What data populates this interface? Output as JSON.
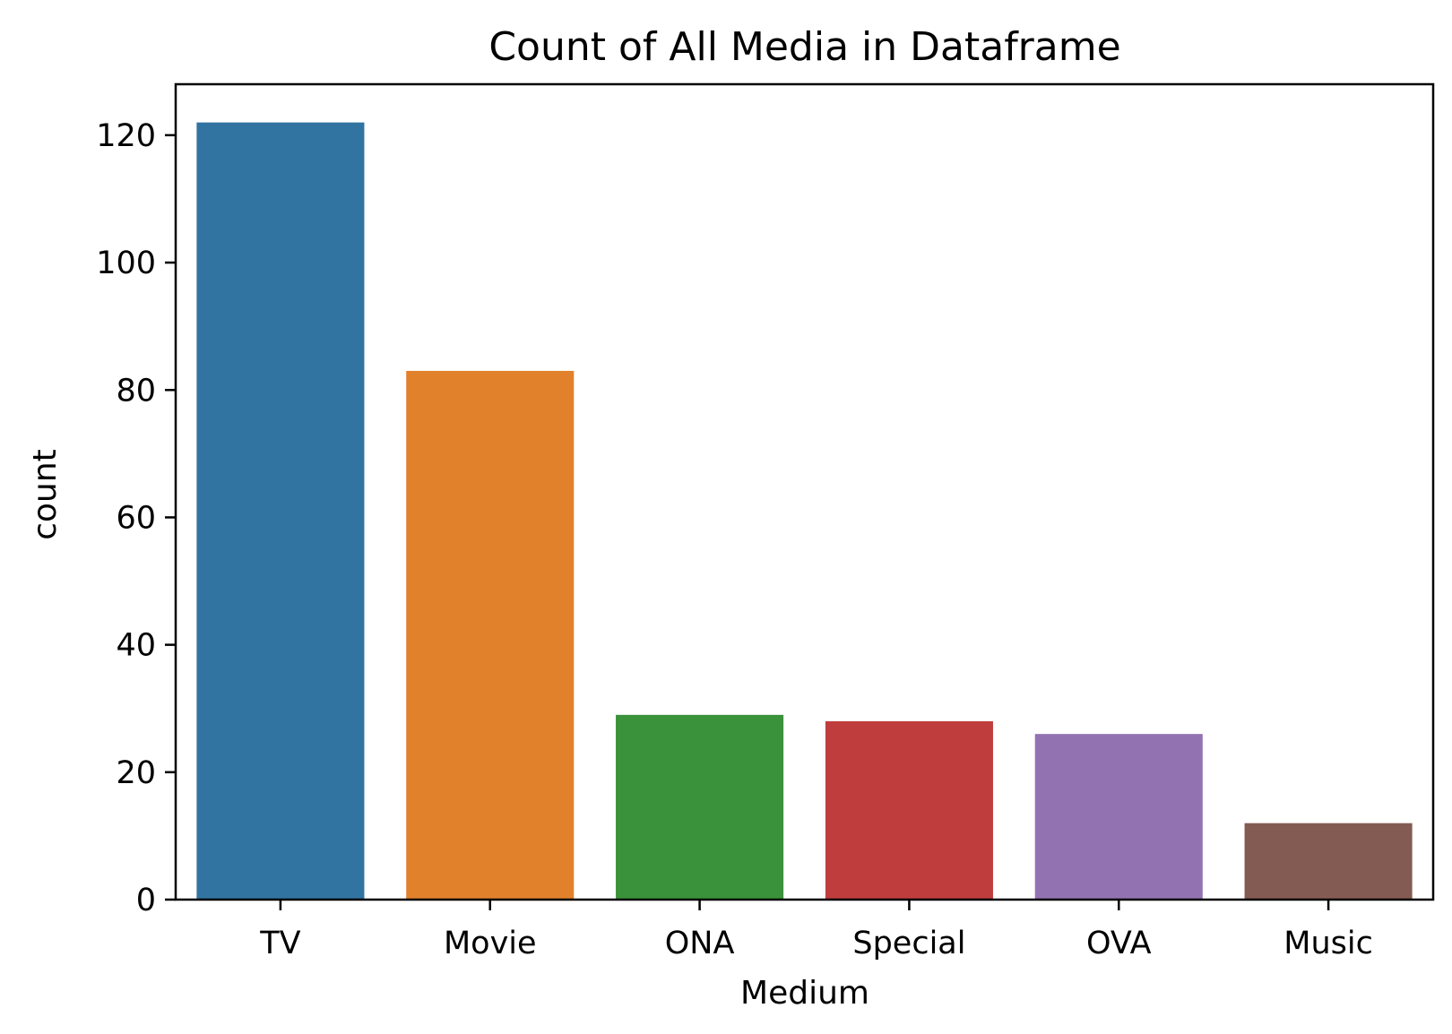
{
  "chart_data": {
    "type": "bar",
    "title": "Count of All Media in Dataframe",
    "xlabel": "Medium",
    "ylabel": "count",
    "categories": [
      "TV",
      "Movie",
      "ONA",
      "Special",
      "OVA",
      "Music"
    ],
    "values": [
      122,
      83,
      29,
      28,
      26,
      12
    ],
    "colors": [
      "#3274a1",
      "#e1812c",
      "#3a923a",
      "#c03d3e",
      "#9372b2",
      "#845b53"
    ],
    "ylim": [
      0,
      128
    ],
    "yticks": [
      0,
      20,
      40,
      60,
      80,
      100,
      120
    ],
    "grid": false
  }
}
